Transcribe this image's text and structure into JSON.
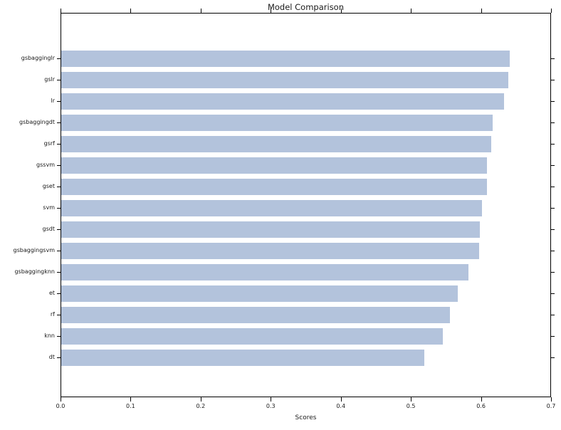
{
  "chart_data": {
    "type": "bar",
    "orientation": "horizontal",
    "title": "Model Comparison",
    "xlabel": "Scores",
    "ylabel": "",
    "categories": [
      "gsbagginglr",
      "gslr",
      "lr",
      "gsbaggingdt",
      "gsrf",
      "gssvm",
      "gset",
      "svm",
      "gsdt",
      "gsbaggingsvm",
      "gsbaggingknn",
      "et",
      "rf",
      "knn",
      "dt"
    ],
    "values": [
      0.64,
      0.638,
      0.632,
      0.616,
      0.614,
      0.608,
      0.608,
      0.6,
      0.597,
      0.596,
      0.581,
      0.566,
      0.555,
      0.544,
      0.518
    ],
    "xlim": [
      0.0,
      0.7
    ],
    "xticks": [
      "0.0",
      "0.1",
      "0.2",
      "0.3",
      "0.4",
      "0.5",
      "0.6",
      "0.7"
    ],
    "grid": false,
    "legend": "none",
    "bar_color": "#b3c3dc",
    "axis_color": "#000000",
    "text_color": "#1a1a1a",
    "background_color": "#ffffff"
  }
}
